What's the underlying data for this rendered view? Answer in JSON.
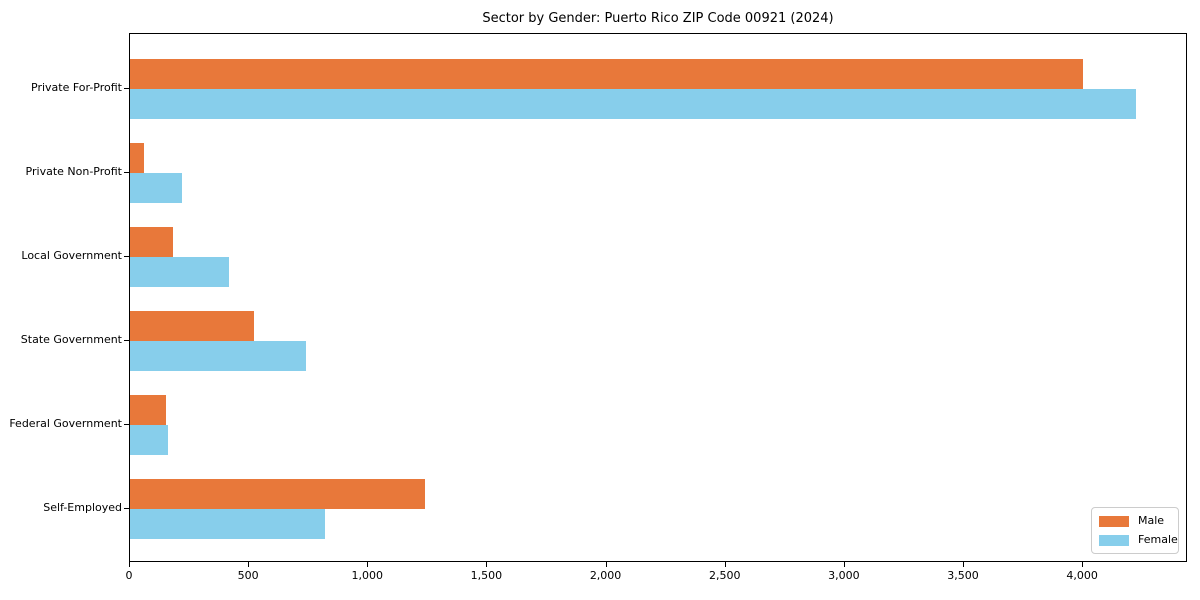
{
  "chart_data": {
    "type": "bar",
    "orientation": "horizontal",
    "title": "Sector by Gender: Puerto Rico ZIP Code 00921 (2024)",
    "categories": [
      "Private For-Profit",
      "Private Non-Profit",
      "Local Government",
      "State Government",
      "Federal Government",
      "Self-Employed"
    ],
    "series": [
      {
        "name": "Male",
        "color": "#e8783a",
        "values": [
          4000,
          60,
          180,
          520,
          150,
          1240
        ]
      },
      {
        "name": "Female",
        "color": "#87ceeb",
        "values": [
          4220,
          220,
          415,
          740,
          160,
          820
        ]
      }
    ],
    "xlim": [
      0,
      4440
    ],
    "xticks": [
      0,
      500,
      1000,
      1500,
      2000,
      2500,
      3000,
      3500,
      4000
    ],
    "xtick_labels": [
      "0",
      "500",
      "1,000",
      "1,500",
      "2,000",
      "2,500",
      "3,000",
      "3,500",
      "4,000"
    ],
    "xlabel": "",
    "ylabel": "",
    "grid": false,
    "legend_position": "lower right",
    "background_color": "#ffffff",
    "spine_color": "#000000"
  }
}
